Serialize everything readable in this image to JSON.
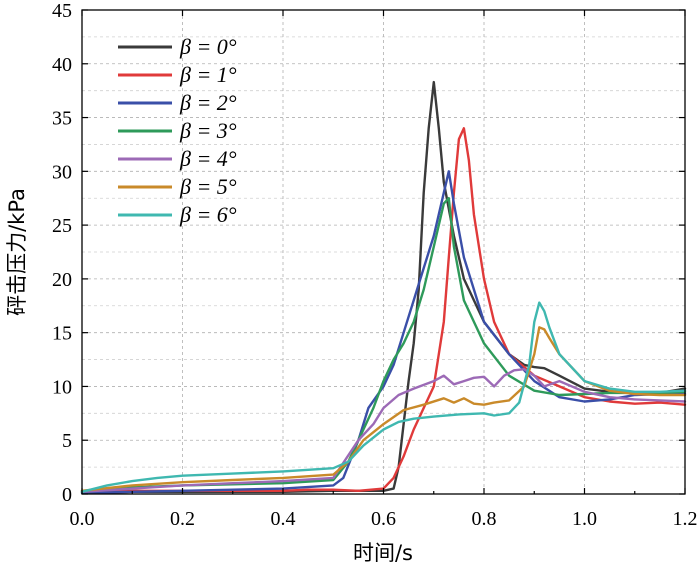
{
  "chart_data": {
    "type": "line",
    "title": "",
    "xlabel": "时间/s",
    "ylabel": "砰击压力/kPa",
    "xlim": [
      0.0,
      1.2
    ],
    "ylim": [
      0,
      45
    ],
    "xticks": [
      0.0,
      0.2,
      0.4,
      0.6,
      0.8,
      1.0,
      1.2
    ],
    "xtick_labels": [
      "0.0",
      "0.2",
      "0.4",
      "0.6",
      "0.8",
      "1.0",
      "1.2"
    ],
    "yticks": [
      0,
      5,
      10,
      15,
      20,
      25,
      30,
      35,
      40,
      45
    ],
    "ytick_labels": [
      "0",
      "5",
      "10",
      "15",
      "20",
      "25",
      "30",
      "35",
      "40",
      "45"
    ],
    "grid": true,
    "legend_position": "top-left",
    "series": [
      {
        "name": "β = 0°",
        "color": "#3a3a3a",
        "x": [
          0.0,
          0.1,
          0.2,
          0.3,
          0.4,
          0.5,
          0.55,
          0.6,
          0.62,
          0.63,
          0.64,
          0.65,
          0.66,
          0.67,
          0.68,
          0.69,
          0.7,
          0.71,
          0.72,
          0.74,
          0.76,
          0.8,
          0.85,
          0.88,
          0.9,
          0.92,
          0.95,
          1.0,
          1.05,
          1.1,
          1.15,
          1.2
        ],
        "y": [
          0.1,
          0.2,
          0.2,
          0.2,
          0.2,
          0.3,
          0.3,
          0.3,
          0.5,
          2.5,
          6.5,
          10.5,
          14,
          19,
          28,
          34,
          38.3,
          34,
          29,
          24,
          20,
          16,
          13,
          12,
          11.8,
          11.7,
          11,
          9.8,
          9.5,
          9.4,
          9.4,
          9.8
        ]
      },
      {
        "name": "β = 1°",
        "color": "#e03a3a",
        "x": [
          0.0,
          0.1,
          0.2,
          0.3,
          0.4,
          0.45,
          0.5,
          0.55,
          0.6,
          0.62,
          0.64,
          0.66,
          0.68,
          0.7,
          0.72,
          0.73,
          0.74,
          0.75,
          0.76,
          0.77,
          0.78,
          0.8,
          0.82,
          0.85,
          0.9,
          0.95,
          1.0,
          1.05,
          1.1,
          1.15,
          1.2
        ],
        "y": [
          0.2,
          0.3,
          0.3,
          0.3,
          0.3,
          0.4,
          0.4,
          0.3,
          0.5,
          1.5,
          3.5,
          6,
          8,
          10,
          16,
          22,
          28,
          33,
          34,
          31,
          26,
          20,
          16,
          13,
          11,
          10,
          9,
          8.6,
          8.4,
          8.5,
          8.3
        ]
      },
      {
        "name": "β = 2°",
        "color": "#3a4fa8",
        "x": [
          0.0,
          0.1,
          0.2,
          0.3,
          0.4,
          0.5,
          0.52,
          0.55,
          0.57,
          0.6,
          0.62,
          0.64,
          0.66,
          0.68,
          0.7,
          0.72,
          0.73,
          0.74,
          0.76,
          0.8,
          0.85,
          0.9,
          0.95,
          1.0,
          1.05,
          1.1,
          1.15,
          1.2
        ],
        "y": [
          0.1,
          0.2,
          0.3,
          0.4,
          0.5,
          0.8,
          1.5,
          5,
          8,
          10,
          12,
          15,
          18,
          21,
          24,
          28,
          30,
          27,
          22,
          16,
          13,
          10.5,
          9,
          8.6,
          8.8,
          9.2,
          9.3,
          9.3
        ]
      },
      {
        "name": "β = 3°",
        "color": "#2e9a5a",
        "x": [
          0.0,
          0.1,
          0.2,
          0.3,
          0.4,
          0.5,
          0.53,
          0.56,
          0.58,
          0.6,
          0.62,
          0.64,
          0.66,
          0.68,
          0.7,
          0.72,
          0.73,
          0.74,
          0.76,
          0.8,
          0.85,
          0.9,
          0.95,
          1.0,
          1.05,
          1.1,
          1.15,
          1.2
        ],
        "y": [
          0.3,
          0.6,
          0.8,
          0.9,
          1.0,
          1.3,
          3,
          6,
          8,
          10.5,
          12.5,
          14,
          16,
          19,
          23,
          27,
          27.5,
          23,
          18,
          14,
          11,
          9.6,
          9.2,
          9.3,
          9.4,
          9.4,
          9.4,
          9.5
        ]
      },
      {
        "name": "β = 4°",
        "color": "#9c6ab6",
        "x": [
          0.0,
          0.1,
          0.2,
          0.3,
          0.4,
          0.5,
          0.55,
          0.58,
          0.6,
          0.63,
          0.66,
          0.7,
          0.72,
          0.74,
          0.76,
          0.78,
          0.8,
          0.82,
          0.84,
          0.86,
          0.88,
          0.9,
          0.92,
          0.95,
          1.0,
          1.05,
          1.1,
          1.15,
          1.2
        ],
        "y": [
          0.2,
          0.5,
          0.8,
          1.0,
          1.2,
          1.5,
          5,
          6.5,
          8,
          9.2,
          9.8,
          10.5,
          11,
          10.2,
          10.5,
          10.8,
          10.9,
          10,
          11,
          11.5,
          11.6,
          11,
          10,
          10.5,
          9.5,
          9,
          8.8,
          8.7,
          8.6
        ]
      },
      {
        "name": "β = 5°",
        "color": "#c98a2a",
        "x": [
          0.0,
          0.1,
          0.2,
          0.3,
          0.4,
          0.5,
          0.53,
          0.56,
          0.6,
          0.64,
          0.68,
          0.72,
          0.74,
          0.76,
          0.78,
          0.8,
          0.82,
          0.85,
          0.88,
          0.9,
          0.91,
          0.92,
          0.93,
          0.95,
          1.0,
          1.05,
          1.1,
          1.15,
          1.2
        ],
        "y": [
          0.3,
          0.8,
          1.1,
          1.3,
          1.5,
          1.8,
          3,
          5,
          6.5,
          7.8,
          8.3,
          8.9,
          8.5,
          8.9,
          8.4,
          8.3,
          8.5,
          8.7,
          10,
          13,
          15.5,
          15.3,
          14.5,
          13,
          10.5,
          9.6,
          9.3,
          9.2,
          9.2
        ]
      },
      {
        "name": "β = 6°",
        "color": "#3fb8b0",
        "x": [
          0.0,
          0.05,
          0.1,
          0.15,
          0.2,
          0.3,
          0.4,
          0.5,
          0.53,
          0.56,
          0.6,
          0.63,
          0.66,
          0.7,
          0.75,
          0.8,
          0.82,
          0.85,
          0.87,
          0.89,
          0.9,
          0.91,
          0.92,
          0.93,
          0.95,
          1.0,
          1.05,
          1.1,
          1.15,
          1.2
        ],
        "y": [
          0.2,
          0.8,
          1.2,
          1.5,
          1.7,
          1.9,
          2.1,
          2.4,
          3,
          4.5,
          6,
          6.7,
          7,
          7.2,
          7.4,
          7.5,
          7.3,
          7.5,
          8.5,
          12,
          16,
          17.8,
          17,
          15.5,
          13,
          10.5,
          9.8,
          9.5,
          9.5,
          9.6
        ]
      }
    ]
  }
}
